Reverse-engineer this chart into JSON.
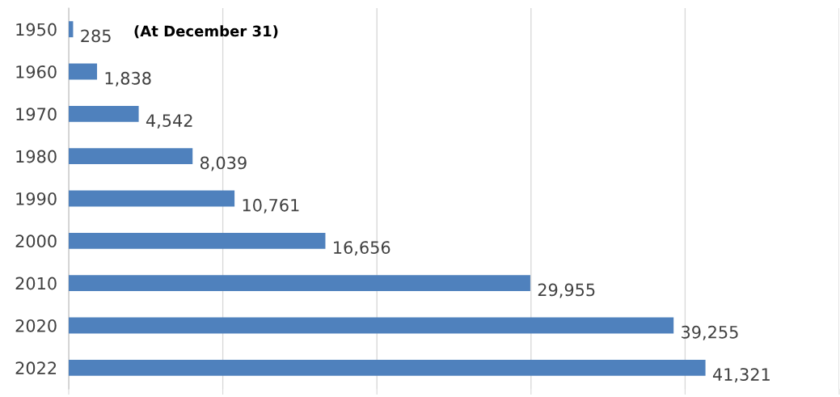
{
  "chart_data": {
    "type": "bar",
    "orientation": "horizontal",
    "categories": [
      "1950",
      "1960",
      "1970",
      "1980",
      "1990",
      "2000",
      "2010",
      "2020",
      "2022"
    ],
    "values": [
      285,
      1838,
      4542,
      8039,
      10761,
      16656,
      29955,
      39255,
      41321
    ],
    "value_labels": [
      "285",
      "1,838",
      "4,542",
      "8,039",
      "10,761",
      "16,656",
      "29,955",
      "39,255",
      "41,321"
    ],
    "color": "#4f81bd",
    "xlim": [
      0,
      50000
    ],
    "xticks": [
      {
        "value": 0,
        "label": null
      },
      {
        "value": 10000,
        "label": null
      },
      {
        "value": 20000,
        "label": null
      },
      {
        "value": 30000,
        "label": null
      },
      {
        "value": 40000,
        "label": null
      },
      {
        "value": 50000,
        "label": null
      }
    ],
    "tick_labels": "y",
    "grid": "x",
    "legend": false,
    "annotations": [
      "(At December 31)"
    ]
  }
}
